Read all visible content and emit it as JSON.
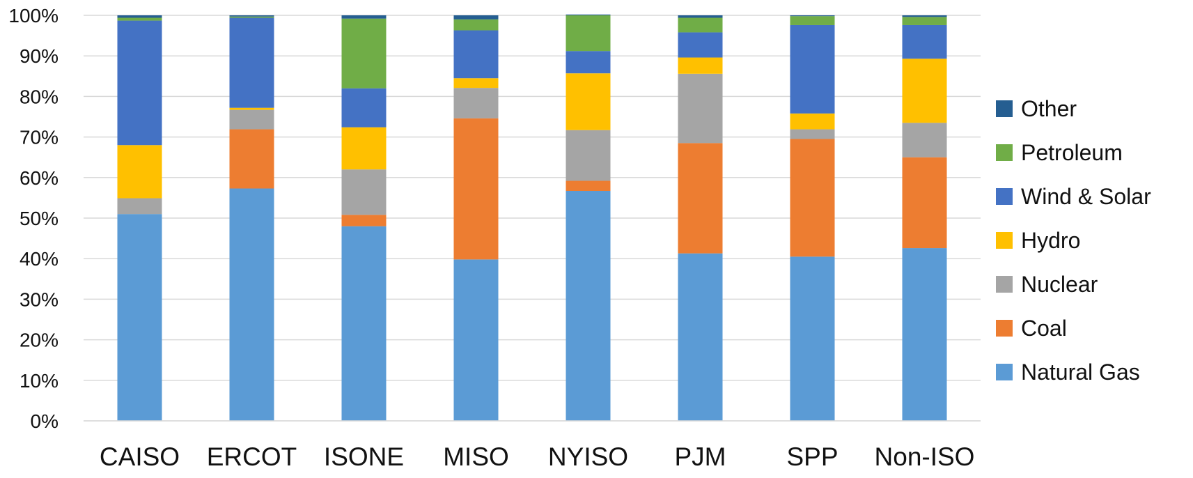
{
  "chart_data": {
    "type": "bar",
    "stacked": true,
    "categories": [
      "CAISO",
      "ERCOT",
      "ISONE",
      "MISO",
      "NYISO",
      "PJM",
      "SPP",
      "Non-ISO"
    ],
    "y_tick_labels": [
      "0%",
      "10%",
      "20%",
      "30%",
      "40%",
      "50%",
      "60%",
      "70%",
      "80%",
      "90%",
      "100%"
    ],
    "ylim": [
      0,
      100
    ],
    "grid": true,
    "legend_position": "right",
    "series": [
      {
        "name": "Natural Gas",
        "color": "#5B9BD5",
        "values": [
          51.0,
          57.3,
          48.0,
          39.8,
          56.7,
          41.3,
          40.5,
          42.6
        ]
      },
      {
        "name": "Coal",
        "color": "#ED7D31",
        "values": [
          0.0,
          14.6,
          2.8,
          34.8,
          2.5,
          27.2,
          29.0,
          22.4
        ]
      },
      {
        "name": "Nuclear",
        "color": "#A5A5A5",
        "values": [
          3.9,
          4.8,
          11.2,
          7.5,
          12.5,
          17.1,
          2.4,
          8.5
        ]
      },
      {
        "name": "Hydro",
        "color": "#FFC000",
        "values": [
          13.1,
          0.5,
          10.4,
          2.4,
          14.0,
          4.0,
          3.9,
          15.8
        ]
      },
      {
        "name": "Wind & Solar",
        "color": "#4472C4",
        "values": [
          30.7,
          22.2,
          9.6,
          11.8,
          5.5,
          6.2,
          21.8,
          8.3
        ]
      },
      {
        "name": "Petroleum",
        "color": "#70AD47",
        "values": [
          0.7,
          0.3,
          17.2,
          2.7,
          8.8,
          3.6,
          2.2,
          2.0
        ]
      },
      {
        "name": "Other",
        "color": "#255E91",
        "values": [
          0.6,
          0.3,
          0.8,
          1.0,
          0.2,
          0.6,
          0.2,
          0.4
        ]
      }
    ]
  }
}
